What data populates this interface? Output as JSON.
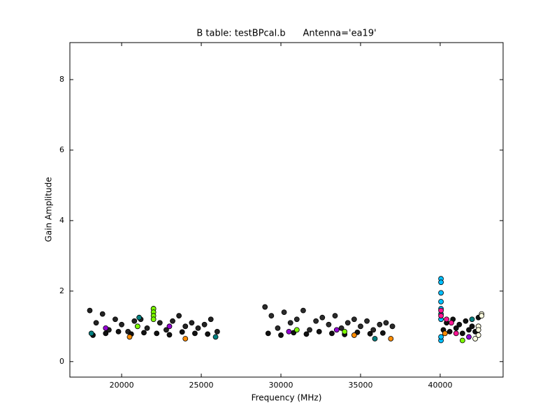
{
  "chart_data": {
    "type": "scatter",
    "title": "B table: testBPcal.b      Antenna='ea19'",
    "x_label": "Frequency (MHz)",
    "y_label": "Gain Amplitude",
    "xlim": [
      16750,
      43950
    ],
    "ylim": [
      -0.44,
      9.05
    ],
    "xticks": [
      20000,
      25000,
      30000,
      35000,
      40000
    ],
    "yticks": [
      0,
      2,
      4,
      6,
      8
    ],
    "series": [
      {
        "color": "#222222",
        "x": [
          18000,
          18400,
          18800,
          19200,
          19600,
          20000,
          20400,
          20800,
          21200,
          21600,
          22000,
          22400,
          22800,
          23200,
          23600,
          24000,
          24400,
          24800,
          25200,
          25600,
          26000
        ],
        "values": [
          1.45,
          1.1,
          1.35,
          0.9,
          1.2,
          1.05,
          0.85,
          1.15,
          1.2,
          0.95,
          1.5,
          1.1,
          0.9,
          1.15,
          1.3,
          1.0,
          1.1,
          0.95,
          1.05,
          1.2,
          0.85
        ]
      },
      {
        "color": "#2b2b2b",
        "x": [
          29000,
          29400,
          29800,
          30200,
          30600,
          31000,
          31400,
          31800,
          32200,
          32600,
          33000,
          33400,
          33800,
          34200,
          34600,
          35000,
          35400,
          35800,
          36200,
          36600,
          37000
        ],
        "values": [
          1.55,
          1.3,
          0.95,
          1.4,
          1.1,
          1.2,
          1.45,
          0.9,
          1.15,
          1.25,
          1.05,
          1.3,
          0.95,
          1.1,
          1.2,
          1.0,
          1.15,
          0.9,
          1.05,
          1.1,
          1.0
        ]
      },
      {
        "color": "#111111",
        "x": [
          18200,
          19000,
          19800,
          20600,
          21400,
          22200,
          23000,
          23800,
          24600,
          25400,
          29200,
          30000,
          30800,
          31600,
          32400,
          33200,
          34000,
          34800,
          35600,
          36400,
          40200,
          40400,
          40600,
          40800,
          41000,
          41200,
          41400,
          41600,
          41800,
          42000,
          42200,
          42400
        ],
        "values": [
          0.75,
          0.8,
          0.85,
          0.78,
          0.82,
          0.8,
          0.76,
          0.84,
          0.8,
          0.78,
          0.8,
          0.75,
          0.82,
          0.78,
          0.85,
          0.8,
          0.77,
          0.83,
          0.79,
          0.81,
          0.9,
          1.1,
          0.85,
          1.2,
          0.95,
          1.05,
          0.8,
          1.15,
          0.9,
          1.0,
          0.85,
          1.25
        ]
      },
      {
        "color": "#00bfff",
        "x": [
          40050,
          40050,
          40050,
          40050,
          40050,
          40050,
          40050,
          40050,
          40050
        ],
        "values": [
          2.35,
          2.25,
          1.95,
          1.7,
          1.5,
          1.35,
          1.2,
          0.6,
          0.7
        ]
      },
      {
        "color": "#ff1493",
        "x": [
          40050,
          40050,
          40400,
          40700,
          41000
        ],
        "values": [
          1.45,
          1.3,
          1.2,
          1.1,
          0.8
        ]
      },
      {
        "color": "#7cfc00",
        "x": [
          22000,
          22000,
          22000,
          22000,
          21000,
          31000,
          34000,
          41400
        ],
        "values": [
          1.5,
          1.4,
          1.3,
          1.2,
          1.0,
          0.9,
          0.85,
          0.6
        ]
      },
      {
        "color": "#ffffe0",
        "x": [
          42400,
          42400,
          42400,
          42600,
          42600,
          42200
        ],
        "values": [
          1.0,
          0.9,
          0.75,
          1.35,
          1.3,
          0.65
        ]
      },
      {
        "color": "#ff8c00",
        "x": [
          24000,
          20500,
          34600,
          36900,
          40300
        ],
        "values": [
          0.65,
          0.7,
          0.75,
          0.65,
          0.8
        ]
      },
      {
        "color": "#9400d3",
        "x": [
          19000,
          23000,
          30500,
          33500,
          41800
        ],
        "values": [
          0.95,
          1.0,
          0.85,
          0.9,
          0.7
        ]
      },
      {
        "color": "#008080",
        "x": [
          18100,
          21100,
          25900,
          35900,
          42000
        ],
        "values": [
          0.8,
          1.25,
          0.7,
          0.65,
          1.2
        ]
      }
    ]
  }
}
